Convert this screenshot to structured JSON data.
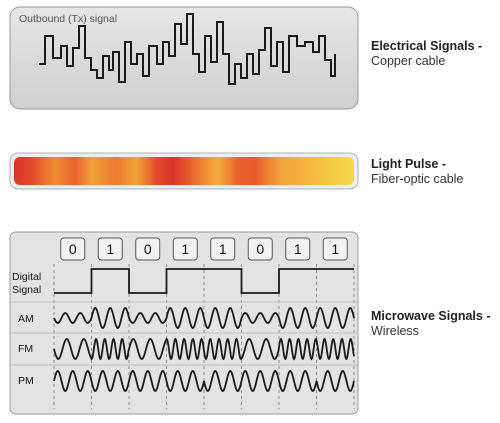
{
  "electrical": {
    "panel_caption": "Outbound (Tx) signal",
    "title": "Electrical Signals",
    "title_suffix": " -",
    "subtitle": "Copper cable",
    "colors": {
      "panel_fill": "#d8d8d8",
      "panel_border": "#9a9a9a",
      "waveform": "#1a1a1a"
    }
  },
  "light": {
    "title": "Light Pulse",
    "title_suffix": " -",
    "subtitle": "Fiber-optic cable",
    "colors": {
      "dark": "#d8352a",
      "mid": "#e8572a",
      "light": "#f3a63a",
      "end": "#f6d84a",
      "border": "#b0b0b0"
    }
  },
  "microwave": {
    "title": "Microwave Signals",
    "title_suffix": " -",
    "subtitle": "Wireless",
    "bits": [
      "0",
      "1",
      "0",
      "1",
      "1",
      "0",
      "1",
      "1"
    ],
    "row_labels": {
      "digital_line1": "Digital",
      "digital_line2": "Signal",
      "am": "AM",
      "fm": "FM",
      "pm": "PM"
    },
    "colors": {
      "panel_fill": "#e3e3e3",
      "panel_border": "#9a9a9a",
      "bit_box_fill": "#f2f2f2",
      "waveform": "#1a1a1a",
      "divider": "#8a8a8a"
    }
  }
}
